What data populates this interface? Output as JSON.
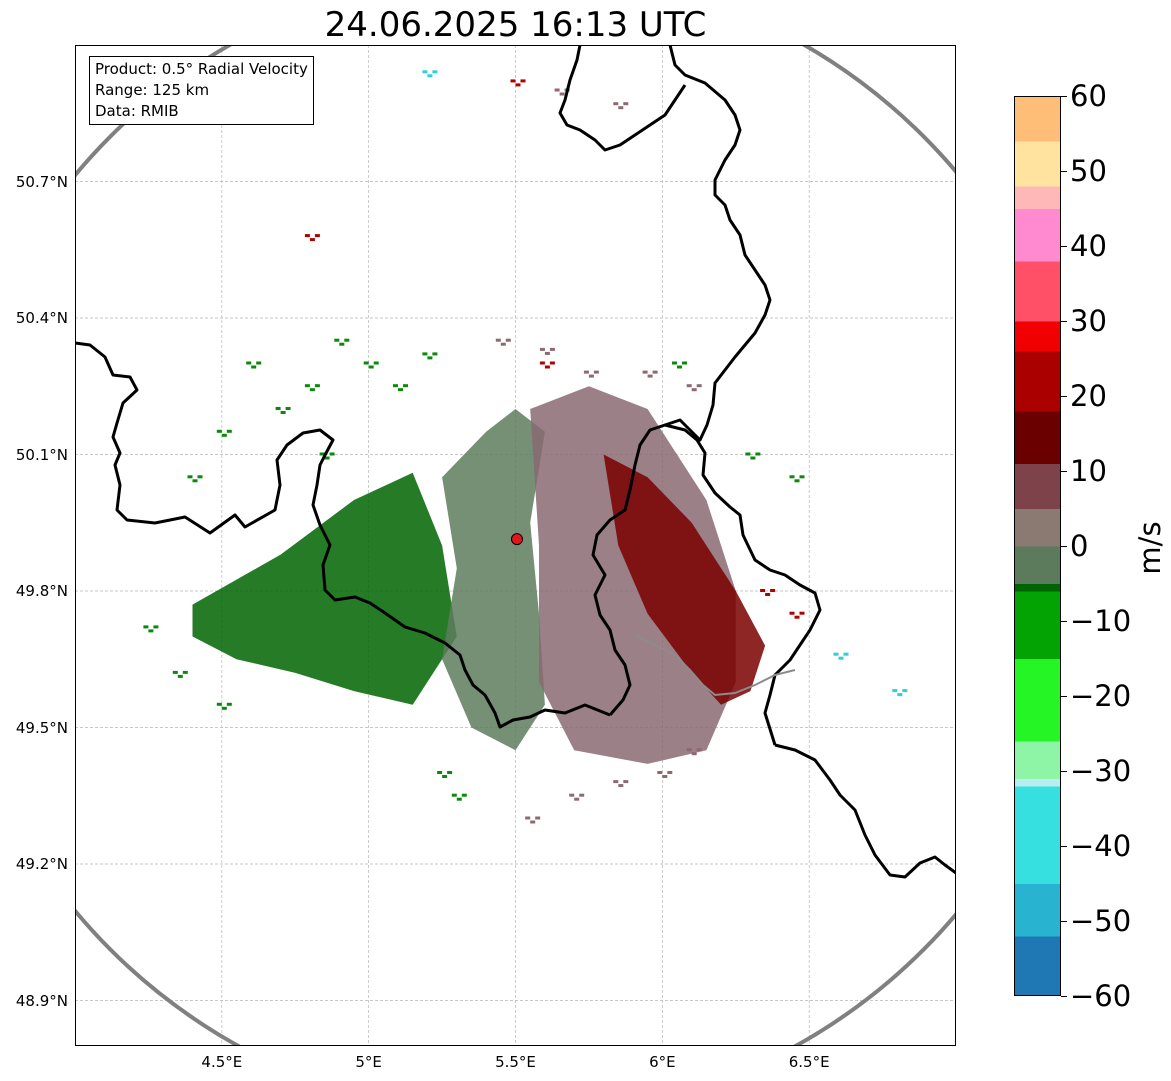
{
  "title": "24.06.2025 16:13 UTC",
  "info": {
    "product": "Product: 0.5° Radial Velocity",
    "range": "Range: 125 km",
    "data": "Data: RMIB"
  },
  "map": {
    "lon_range": [
      4.0,
      7.0
    ],
    "lat_range": [
      48.8,
      51.0
    ],
    "grid": true,
    "radar_site": {
      "lon": 5.505,
      "lat": 49.914,
      "color": "#e8141c"
    },
    "range_ring_color": "#808080",
    "border_color": "#000000",
    "river_color": "#8c8c8c",
    "y_ticks": [
      {
        "lat": 50.7,
        "label": "50.7°N"
      },
      {
        "lat": 50.4,
        "label": "50.4°N"
      },
      {
        "lat": 50.1,
        "label": "50.1°N"
      },
      {
        "lat": 49.8,
        "label": "49.8°N"
      },
      {
        "lat": 49.5,
        "label": "49.5°N"
      },
      {
        "lat": 49.2,
        "label": "49.2°N"
      },
      {
        "lat": 48.9,
        "label": "48.9°N"
      }
    ],
    "x_ticks": [
      {
        "lon": 4.5,
        "label": "4.5°E"
      },
      {
        "lon": 5.0,
        "label": "5°E"
      },
      {
        "lon": 5.5,
        "label": "5.5°E"
      },
      {
        "lon": 6.0,
        "label": "6°E"
      },
      {
        "lon": 6.5,
        "label": "6.5°E"
      }
    ],
    "echo_regions": [
      {
        "kind": "outbound",
        "color": "#006400",
        "points": [
          [
            4.4,
            49.77
          ],
          [
            4.7,
            49.88
          ],
          [
            4.95,
            50.0
          ],
          [
            5.15,
            50.06
          ],
          [
            5.25,
            49.9
          ],
          [
            5.3,
            49.7
          ],
          [
            5.15,
            49.55
          ],
          [
            4.95,
            49.58
          ],
          [
            4.75,
            49.62
          ],
          [
            4.55,
            49.65
          ],
          [
            4.4,
            49.7
          ]
        ]
      },
      {
        "kind": "weak-outbound",
        "color": "#5e7d5e",
        "points": [
          [
            5.25,
            50.05
          ],
          [
            5.4,
            50.15
          ],
          [
            5.5,
            50.2
          ],
          [
            5.6,
            50.15
          ],
          [
            5.55,
            49.95
          ],
          [
            5.58,
            49.75
          ],
          [
            5.6,
            49.55
          ],
          [
            5.5,
            49.45
          ],
          [
            5.35,
            49.5
          ],
          [
            5.25,
            49.65
          ],
          [
            5.3,
            49.85
          ]
        ]
      },
      {
        "kind": "weak-inbound",
        "color": "#8a6a72",
        "points": [
          [
            5.55,
            50.2
          ],
          [
            5.75,
            50.25
          ],
          [
            5.95,
            50.2
          ],
          [
            6.15,
            50.0
          ],
          [
            6.25,
            49.8
          ],
          [
            6.25,
            49.6
          ],
          [
            6.15,
            49.45
          ],
          [
            5.95,
            49.42
          ],
          [
            5.7,
            49.45
          ],
          [
            5.58,
            49.6
          ],
          [
            5.58,
            49.9
          ]
        ]
      },
      {
        "kind": "inbound",
        "color": "#7a0000",
        "points": [
          [
            5.8,
            50.1
          ],
          [
            5.95,
            50.05
          ],
          [
            6.1,
            49.95
          ],
          [
            6.25,
            49.8
          ],
          [
            6.35,
            49.68
          ],
          [
            6.3,
            49.58
          ],
          [
            6.2,
            49.55
          ],
          [
            6.1,
            49.62
          ],
          [
            5.95,
            49.75
          ],
          [
            5.85,
            49.9
          ]
        ]
      }
    ],
    "echo_speckles": [
      {
        "color": "#0a8a0a",
        "points": [
          [
            4.6,
            50.3
          ],
          [
            4.9,
            50.35
          ],
          [
            5.0,
            50.3
          ],
          [
            4.8,
            50.25
          ],
          [
            4.7,
            50.2
          ],
          [
            5.1,
            50.25
          ],
          [
            5.2,
            50.32
          ],
          [
            4.5,
            50.15
          ],
          [
            4.4,
            50.05
          ],
          [
            4.85,
            50.1
          ],
          [
            4.25,
            49.72
          ],
          [
            4.35,
            49.62
          ],
          [
            4.5,
            49.55
          ],
          [
            5.25,
            49.4
          ],
          [
            5.3,
            49.35
          ],
          [
            6.05,
            50.3
          ],
          [
            6.3,
            50.1
          ],
          [
            6.45,
            50.05
          ]
        ]
      },
      {
        "color": "#8c6a70",
        "points": [
          [
            5.45,
            50.35
          ],
          [
            5.6,
            50.33
          ],
          [
            5.75,
            50.28
          ],
          [
            5.95,
            50.28
          ],
          [
            6.1,
            50.25
          ],
          [
            5.65,
            50.9
          ],
          [
            5.85,
            50.87
          ],
          [
            5.55,
            49.3
          ],
          [
            5.7,
            49.35
          ],
          [
            5.85,
            49.38
          ],
          [
            6.0,
            49.4
          ],
          [
            6.1,
            49.45
          ]
        ]
      },
      {
        "color": "#b00000",
        "points": [
          [
            5.5,
            50.92
          ],
          [
            4.8,
            50.58
          ],
          [
            6.35,
            49.8
          ],
          [
            6.45,
            49.75
          ],
          [
            5.6,
            50.3
          ]
        ]
      },
      {
        "color": "#2fcfd6",
        "points": [
          [
            5.2,
            50.94
          ],
          [
            6.6,
            49.66
          ],
          [
            6.8,
            49.58
          ]
        ]
      }
    ]
  },
  "colorbar": {
    "unit": "m/s",
    "range": [
      -60,
      60
    ],
    "stops": [
      {
        "v": -60,
        "color": "#1f77b4"
      },
      {
        "v": -52,
        "color": "#28b4d0"
      },
      {
        "v": -45,
        "color": "#36e0e0"
      },
      {
        "v": -32,
        "color": "#b8eef2"
      },
      {
        "v": -31,
        "color": "#8ef5a6"
      },
      {
        "v": -26,
        "color": "#25f525"
      },
      {
        "v": -15,
        "color": "#03a303"
      },
      {
        "v": -6,
        "color": "#006400"
      },
      {
        "v": -5,
        "color": "#5c7a5c"
      },
      {
        "v": 0,
        "color": "#8a7a72"
      },
      {
        "v": 5,
        "color": "#7e424b"
      },
      {
        "v": 11,
        "color": "#6b0000"
      },
      {
        "v": 18,
        "color": "#aa0000"
      },
      {
        "v": 26,
        "color": "#f00000"
      },
      {
        "v": 30,
        "color": "#ff5068"
      },
      {
        "v": 38,
        "color": "#ff8ad0"
      },
      {
        "v": 45,
        "color": "#ffb8b8"
      },
      {
        "v": 48,
        "color": "#ffe39e"
      },
      {
        "v": 54,
        "color": "#ffbe78"
      },
      {
        "v": 60,
        "color": "#ff9955"
      }
    ],
    "ticks": [
      {
        "v": 60,
        "label": "60"
      },
      {
        "v": 50,
        "label": "50"
      },
      {
        "v": 40,
        "label": "40"
      },
      {
        "v": 30,
        "label": "30"
      },
      {
        "v": 20,
        "label": "20"
      },
      {
        "v": 10,
        "label": "10"
      },
      {
        "v": 0,
        "label": "0"
      },
      {
        "v": -10,
        "label": "−10"
      },
      {
        "v": -20,
        "label": "−20"
      },
      {
        "v": -30,
        "label": "−30"
      },
      {
        "v": -40,
        "label": "−40"
      },
      {
        "v": -50,
        "label": "−50"
      },
      {
        "v": -60,
        "label": "−60"
      }
    ]
  }
}
